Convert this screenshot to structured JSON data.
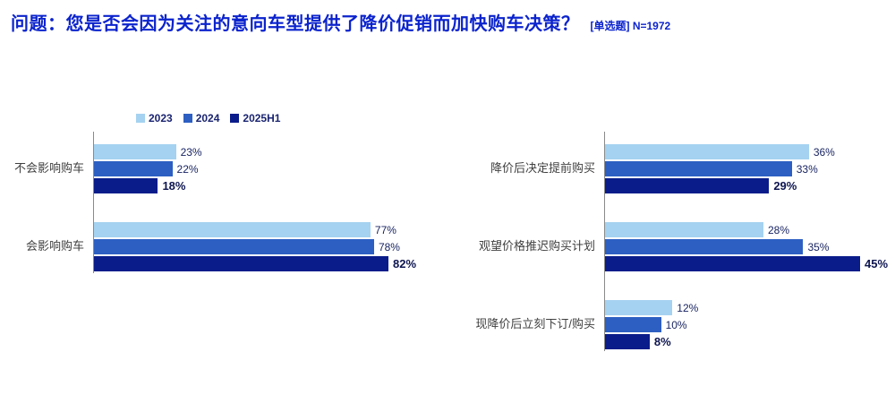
{
  "header": {
    "title": "问题：您是否会因为关注的意向车型提供了降价促销而加快购车决策？",
    "subtitle": "[单选题] N=1972"
  },
  "series_colors": {
    "2023": "#a5d2f0",
    "2024": "#2d5fc2",
    "2025H1": "#0a1c8a"
  },
  "title_color": "#0b23cd",
  "legend": [
    "2023",
    "2024",
    "2025H1"
  ],
  "emphasis_series": "2025H1",
  "chart_data": [
    {
      "type": "bar",
      "orientation": "horizontal",
      "title": "",
      "xlabel": "",
      "ylabel": "",
      "xlim": [
        0,
        100
      ],
      "unit": "%",
      "categories": [
        "不会影响购车",
        "会影响购车"
      ],
      "series": [
        {
          "name": "2023",
          "values": [
            23,
            77
          ]
        },
        {
          "name": "2024",
          "values": [
            22,
            78
          ]
        },
        {
          "name": "2025H1",
          "values": [
            18,
            82
          ]
        }
      ],
      "legend_position": "top-left",
      "grid": false
    },
    {
      "type": "bar",
      "orientation": "horizontal",
      "title": "",
      "xlabel": "",
      "ylabel": "",
      "xlim": [
        0,
        100
      ],
      "unit": "%",
      "categories": [
        "降价后决定提前购买",
        "观望价格推迟购买计划",
        "现降价后立刻下订/购买"
      ],
      "series": [
        {
          "name": "2023",
          "values": [
            36,
            28,
            12
          ]
        },
        {
          "name": "2024",
          "values": [
            33,
            35,
            10
          ]
        },
        {
          "name": "2025H1",
          "values": [
            29,
            45,
            8
          ]
        }
      ],
      "legend_position": "none",
      "grid": false
    }
  ]
}
